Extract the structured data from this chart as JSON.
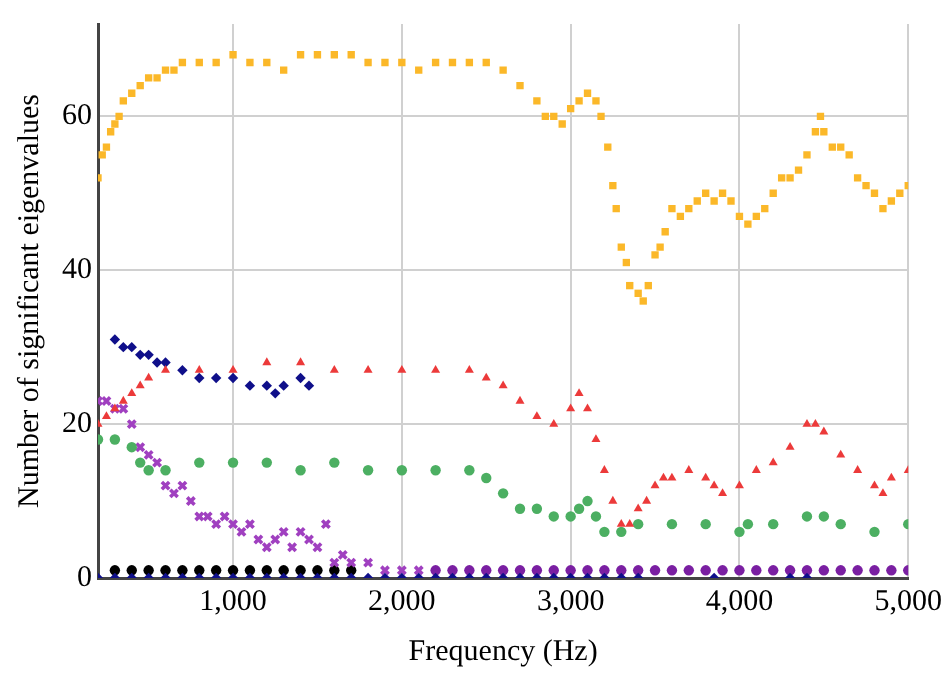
{
  "chart_data": {
    "type": "scatter",
    "xlabel": "Frequency (Hz)",
    "ylabel": "Number of significant eigenvalues",
    "xlim": [
      200,
      5000
    ],
    "ylim": [
      0,
      72
    ],
    "xticks": [
      {
        "value": 1000,
        "label": "1,000"
      },
      {
        "value": 2000,
        "label": "2,000"
      },
      {
        "value": 3000,
        "label": "3,000"
      },
      {
        "value": 4000,
        "label": "4,000"
      },
      {
        "value": 5000,
        "label": "5,000"
      }
    ],
    "yticks": [
      0,
      20,
      40,
      60
    ],
    "grid": true,
    "series": [
      {
        "color": "#fbb829",
        "marker": "square",
        "x": [
          200,
          225,
          250,
          275,
          300,
          325,
          350,
          400,
          450,
          500,
          550,
          600,
          650,
          700,
          800,
          900,
          1000,
          1100,
          1200,
          1300,
          1400,
          1500,
          1600,
          1700,
          1800,
          1900,
          2000,
          2100,
          2200,
          2300,
          2400,
          2500,
          2600,
          2700,
          2800,
          2850,
          2900,
          2950,
          3000,
          3050,
          3100,
          3150,
          3180,
          3220,
          3250,
          3270,
          3300,
          3330,
          3350,
          3400,
          3430,
          3460,
          3500,
          3530,
          3560,
          3600,
          3650,
          3700,
          3750,
          3800,
          3850,
          3900,
          3950,
          4000,
          4050,
          4100,
          4150,
          4200,
          4250,
          4300,
          4350,
          4400,
          4450,
          4480,
          4500,
          4550,
          4600,
          4650,
          4700,
          4750,
          4800,
          4850,
          4900,
          4950,
          5000
        ],
        "values": [
          52,
          55,
          56,
          58,
          59,
          60,
          62,
          63,
          64,
          65,
          65,
          66,
          66,
          67,
          67,
          67,
          68,
          67,
          67,
          66,
          68,
          68,
          68,
          68,
          67,
          67,
          67,
          66,
          67,
          67,
          67,
          67,
          66,
          64,
          62,
          60,
          60,
          59,
          61,
          62,
          63,
          62,
          60,
          56,
          51,
          48,
          43,
          41,
          38,
          37,
          36,
          38,
          42,
          43,
          45,
          48,
          47,
          48,
          49,
          50,
          49,
          50,
          49,
          47,
          46,
          47,
          48,
          50,
          52,
          52,
          53,
          55,
          58,
          60,
          58,
          56,
          56,
          55,
          52,
          51,
          50,
          48,
          49,
          50,
          51
        ]
      },
      {
        "color": "#ec3a3a",
        "marker": "triangle",
        "x": [
          200,
          250,
          300,
          350,
          400,
          450,
          500,
          600,
          800,
          1000,
          1200,
          1400,
          1600,
          1800,
          2000,
          2200,
          2400,
          2500,
          2600,
          2700,
          2800,
          2900,
          3000,
          3050,
          3100,
          3150,
          3200,
          3250,
          3300,
          3350,
          3400,
          3450,
          3500,
          3550,
          3600,
          3700,
          3800,
          3850,
          3900,
          4000,
          4100,
          4200,
          4300,
          4400,
          4450,
          4500,
          4600,
          4700,
          4800,
          4850,
          4900,
          5000
        ],
        "values": [
          20,
          21,
          22,
          23,
          24,
          25,
          26,
          27,
          27,
          27,
          28,
          28,
          27,
          27,
          27,
          27,
          27,
          26,
          25,
          23,
          21,
          20,
          22,
          24,
          22,
          18,
          14,
          10,
          7,
          7,
          9,
          10,
          12,
          13,
          13,
          14,
          13,
          12,
          11,
          12,
          14,
          15,
          17,
          20,
          20,
          19,
          16,
          14,
          12,
          11,
          13,
          14
        ]
      },
      {
        "color": "#4caf62",
        "marker": "circle",
        "x": [
          200,
          300,
          400,
          450,
          500,
          600,
          800,
          1000,
          1200,
          1400,
          1600,
          1800,
          2000,
          2200,
          2400,
          2500,
          2600,
          2700,
          2800,
          2900,
          3000,
          3050,
          3100,
          3150,
          3200,
          3300,
          3400,
          3600,
          3800,
          4000,
          4050,
          4200,
          4400,
          4500,
          4600,
          4800,
          5000
        ],
        "values": [
          18,
          18,
          17,
          15,
          14,
          14,
          15,
          15,
          15,
          14,
          15,
          14,
          14,
          14,
          14,
          13,
          11,
          9,
          9,
          8,
          8,
          9,
          10,
          8,
          6,
          6,
          7,
          7,
          7,
          6,
          7,
          7,
          8,
          8,
          7,
          6,
          7
        ]
      },
      {
        "color": "#0f0f8a",
        "marker": "diamond",
        "x": [
          300,
          350,
          400,
          450,
          500,
          550,
          600,
          700,
          800,
          900,
          1000,
          1100,
          1200,
          1250,
          1300,
          1400,
          1450,
          200,
          300,
          400,
          500,
          600,
          700,
          800,
          900,
          1000,
          1100,
          1200,
          1300,
          1400,
          1500,
          1600,
          1700,
          1800,
          1900,
          2000,
          2100,
          2200,
          2300,
          2400,
          2500,
          2600,
          2700,
          2800,
          2900,
          3000,
          3100,
          3200,
          3300,
          3400,
          3850,
          4300,
          4400
        ],
        "values": [
          31,
          30,
          30,
          29,
          29,
          28,
          28,
          27,
          26,
          26,
          26,
          25,
          25,
          24,
          25,
          26,
          25,
          0,
          0,
          0,
          0,
          0,
          0,
          0,
          0,
          0,
          0,
          0,
          0,
          0,
          0,
          0,
          0,
          0,
          0,
          0,
          0,
          0,
          0,
          0,
          0,
          0,
          0,
          0,
          0,
          0,
          0,
          0,
          0,
          0,
          0,
          0,
          0
        ]
      },
      {
        "color": "#a040c0",
        "marker": "cross",
        "x": [
          200,
          250,
          300,
          350,
          400,
          450,
          500,
          550,
          600,
          650,
          700,
          750,
          800,
          850,
          900,
          950,
          1000,
          1050,
          1100,
          1150,
          1200,
          1250,
          1300,
          1350,
          1400,
          1450,
          1500,
          1550,
          1600,
          1650,
          1700,
          1800,
          1900,
          2000,
          2100
        ],
        "values": [
          23,
          23,
          22,
          22,
          20,
          17,
          16,
          15,
          12,
          11,
          12,
          10,
          8,
          8,
          7,
          8,
          7,
          6,
          7,
          5,
          4,
          5,
          6,
          4,
          6,
          5,
          4,
          7,
          2,
          3,
          2,
          2,
          1,
          1,
          1
        ]
      },
      {
        "color": "#000000",
        "marker": "circle",
        "x": [
          300,
          400,
          500,
          600,
          700,
          800,
          900,
          1000,
          1100,
          1200,
          1300,
          1400,
          1500,
          1600,
          1700
        ],
        "values": [
          1,
          1,
          1,
          1,
          1,
          1,
          1,
          1,
          1,
          1,
          1,
          1,
          1,
          1,
          1
        ]
      },
      {
        "color": "#7a1fa2",
        "marker": "circle",
        "x": [
          2200,
          2300,
          2400,
          2500,
          2600,
          2700,
          2800,
          2900,
          3000,
          3100,
          3200,
          3300,
          3400,
          3500,
          3600,
          3700,
          3800,
          3900,
          4000,
          4100,
          4200,
          4300,
          4400,
          4500,
          4600,
          4700,
          4800,
          4900,
          5000
        ],
        "values": [
          1,
          1,
          1,
          1,
          1,
          1,
          1,
          1,
          1,
          1,
          1,
          1,
          1,
          1,
          1,
          1,
          1,
          1,
          1,
          1,
          1,
          1,
          1,
          1,
          1,
          1,
          1,
          1,
          1
        ]
      }
    ]
  }
}
